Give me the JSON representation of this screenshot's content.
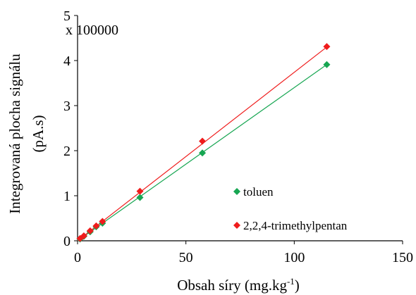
{
  "chart_data": {
    "type": "scatter",
    "multiplier_label": "x 100000",
    "xlabel_main": "Obsah síry (mg.kg",
    "xlabel_sup": "-1",
    "xlabel_end": ")",
    "ylabel_line1": "Integrovaná plocha signálu",
    "ylabel_line2": "(pA.s)",
    "xlim": [
      0,
      150
    ],
    "ylim": [
      0,
      5
    ],
    "x_ticks": [
      0,
      50,
      100,
      150
    ],
    "y_ticks": [
      0,
      1,
      2,
      3,
      4,
      5
    ],
    "grid": false,
    "legend_position": "bottom-right, inside plot",
    "series": [
      {
        "name": "toluen",
        "color": "#17a652",
        "marker": "diamond",
        "trendline": [
          [
            0,
            0
          ],
          [
            115,
            3.91
          ]
        ],
        "points": [
          [
            1.15,
            0.04
          ],
          [
            2.9,
            0.1
          ],
          [
            5.8,
            0.2
          ],
          [
            8.6,
            0.31
          ],
          [
            11.5,
            0.39
          ],
          [
            28.8,
            0.96
          ],
          [
            57.6,
            1.95
          ],
          [
            115,
            3.91
          ]
        ]
      },
      {
        "name": "2,2,4-trimethylpentan",
        "color": "#ef1c1c",
        "marker": "diamond",
        "trendline": [
          [
            0,
            0
          ],
          [
            115,
            4.3
          ]
        ],
        "points": [
          [
            1.15,
            0.05
          ],
          [
            2.9,
            0.11
          ],
          [
            5.8,
            0.22
          ],
          [
            8.6,
            0.33
          ],
          [
            11.5,
            0.43
          ],
          [
            28.8,
            1.1
          ],
          [
            57.6,
            2.21
          ],
          [
            115,
            4.31
          ]
        ]
      }
    ]
  }
}
